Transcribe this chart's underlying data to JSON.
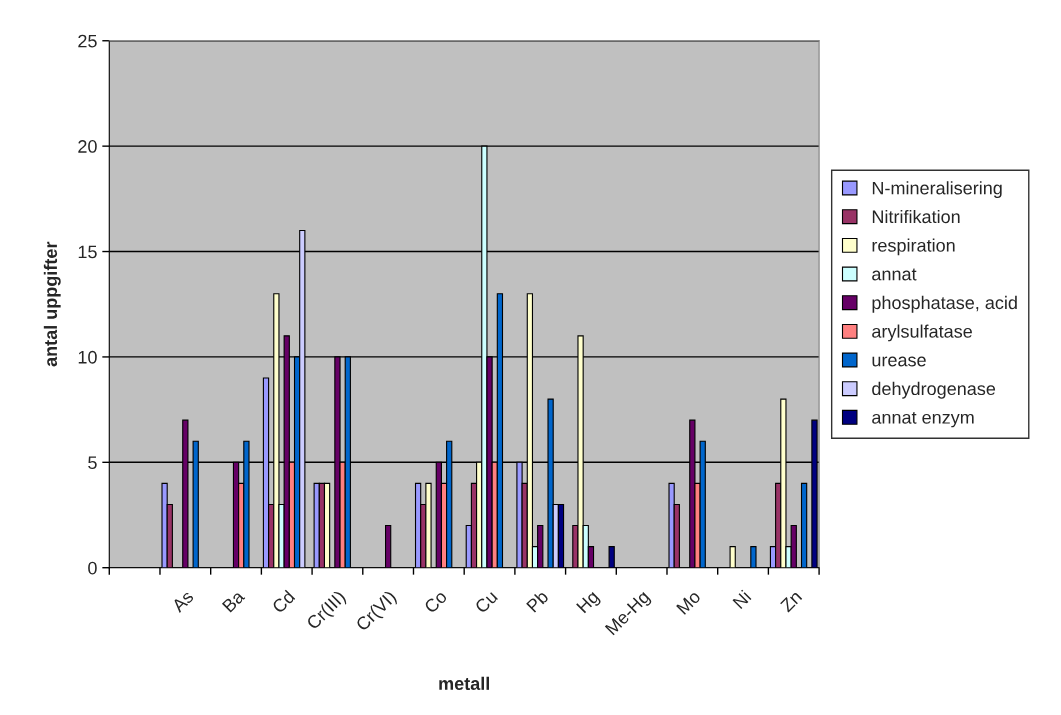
{
  "chart_data": {
    "type": "bar",
    "xlabel": "metall",
    "ylabel": "antal uppgifter",
    "categories": [
      null,
      "As",
      "Ba",
      "Cd",
      "Cr(III)",
      "Cr(VI)",
      "Co",
      "Cu",
      "Pb",
      "Hg",
      "Me-Hg",
      "Mo",
      "Ni",
      "Zn"
    ],
    "series": [
      {
        "name": "N-mineralisering",
        "color": "#9999ff",
        "values": [
          null,
          4,
          null,
          9,
          4,
          null,
          4,
          2,
          5,
          null,
          null,
          4,
          null,
          1
        ]
      },
      {
        "name": "Nitrifikation",
        "color": "#993366",
        "values": [
          null,
          3,
          null,
          3,
          4,
          null,
          3,
          4,
          4,
          2,
          null,
          3,
          null,
          4
        ]
      },
      {
        "name": "respiration",
        "color": "#ffffcc",
        "values": [
          null,
          null,
          null,
          13,
          4,
          null,
          4,
          5,
          13,
          11,
          null,
          null,
          1,
          8
        ]
      },
      {
        "name": "annat",
        "color": "#ccffff",
        "values": [
          null,
          null,
          null,
          3,
          null,
          null,
          null,
          20,
          1,
          2,
          null,
          null,
          null,
          1
        ]
      },
      {
        "name": "phosphatase, acid",
        "color": "#660066",
        "values": [
          null,
          7,
          5,
          11,
          10,
          2,
          5,
          10,
          2,
          1,
          null,
          7,
          null,
          2
        ]
      },
      {
        "name": "arylsulfatase",
        "color": "#ff8080",
        "values": [
          null,
          null,
          4,
          5,
          5,
          null,
          4,
          5,
          null,
          null,
          null,
          4,
          null,
          null
        ]
      },
      {
        "name": "urease",
        "color": "#0066cc",
        "values": [
          null,
          6,
          6,
          10,
          10,
          null,
          6,
          13,
          8,
          null,
          null,
          6,
          1,
          4
        ]
      },
      {
        "name": "dehydrogenase",
        "color": "#ccccff",
        "values": [
          null,
          null,
          null,
          16,
          null,
          null,
          null,
          null,
          3,
          null,
          null,
          null,
          null,
          null
        ]
      },
      {
        "name": "annat enzym",
        "color": "#000080",
        "values": [
          null,
          null,
          null,
          null,
          null,
          null,
          null,
          null,
          3,
          1,
          null,
          null,
          null,
          7
        ]
      }
    ],
    "ylim": [
      0,
      25
    ],
    "yticks": [
      0,
      5,
      10,
      15,
      20,
      25
    ],
    "grid": "y",
    "legend": "right"
  }
}
